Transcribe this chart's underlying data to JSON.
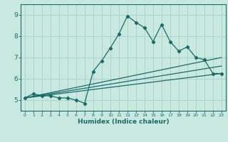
{
  "xlabel": "Humidex (Indice chaleur)",
  "xlim": [
    -0.5,
    23.5
  ],
  "ylim": [
    4.5,
    9.5
  ],
  "xticks": [
    0,
    1,
    2,
    3,
    4,
    5,
    6,
    7,
    8,
    9,
    10,
    11,
    12,
    13,
    14,
    15,
    16,
    17,
    18,
    19,
    20,
    21,
    22,
    23
  ],
  "yticks": [
    5,
    6,
    7,
    8,
    9
  ],
  "bg_color": "#c8e8e0",
  "grid_color": "#aad4cc",
  "line_color": "#1a6b6b",
  "main_line_x": [
    0,
    1,
    2,
    3,
    4,
    5,
    6,
    7,
    8,
    9,
    10,
    11,
    12,
    13,
    14,
    15,
    16,
    17,
    18,
    19,
    20,
    21,
    22,
    23
  ],
  "main_line_y": [
    5.1,
    5.3,
    5.2,
    5.2,
    5.1,
    5.1,
    5.0,
    4.85,
    6.35,
    6.85,
    7.45,
    8.1,
    8.95,
    8.65,
    8.4,
    7.75,
    8.55,
    7.75,
    7.3,
    7.5,
    7.0,
    6.9,
    6.25,
    6.25
  ],
  "line2_x": [
    0,
    23
  ],
  "line2_y": [
    5.1,
    7.0
  ],
  "line3_x": [
    0,
    23
  ],
  "line3_y": [
    5.1,
    6.25
  ],
  "line4_x": [
    0,
    23
  ],
  "line4_y": [
    5.1,
    6.6
  ]
}
